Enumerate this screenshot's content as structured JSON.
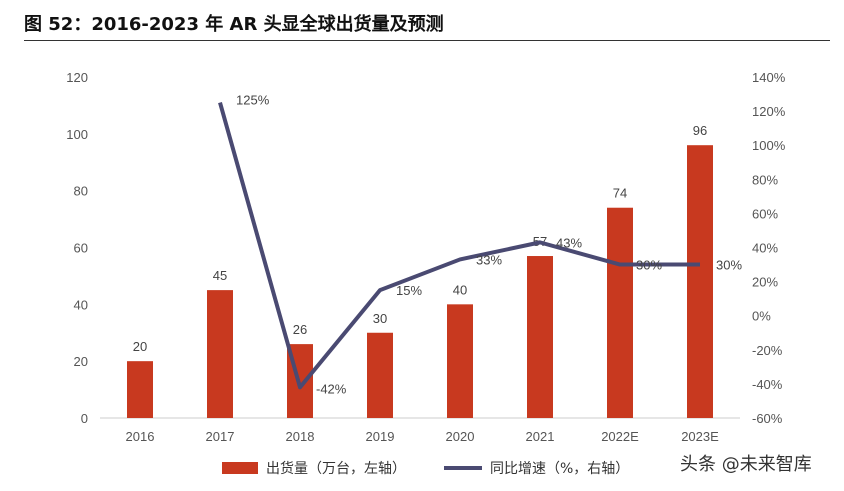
{
  "title": "图 52：2016-2023 年 AR 头显全球出货量及预测",
  "watermark": "头条 @未来智库",
  "colors": {
    "bar": "#c8391f",
    "line": "#4a4a72",
    "axis": "#cccccc"
  },
  "chart_data": {
    "type": "bar",
    "categories": [
      "2016",
      "2017",
      "2018",
      "2019",
      "2020",
      "2021",
      "2022E",
      "2023E"
    ],
    "series": [
      {
        "name": "出货量（万台，左轴）",
        "type": "bar",
        "axis": "left",
        "values": [
          20,
          45,
          26,
          30,
          40,
          57,
          74,
          96
        ],
        "labels": [
          "20",
          "45",
          "26",
          "30",
          "40",
          "57",
          "74",
          "96"
        ]
      },
      {
        "name": "同比增速（%，右轴）",
        "type": "line",
        "axis": "right",
        "values": [
          null,
          125,
          -42,
          15,
          33,
          43,
          30,
          30
        ],
        "labels": [
          "",
          "125%",
          "-42%",
          "15%",
          "33%",
          "43%",
          "30%",
          "30%"
        ]
      }
    ],
    "y_left": {
      "min": 0,
      "max": 120,
      "ticks": [
        "0",
        "20",
        "40",
        "60",
        "80",
        "100",
        "120"
      ]
    },
    "y_right": {
      "min": -60,
      "max": 140,
      "ticks": [
        "-60%",
        "-40%",
        "-20%",
        "0%",
        "20%",
        "40%",
        "60%",
        "80%",
        "100%",
        "120%",
        "140%"
      ]
    },
    "legend_position": "bottom",
    "grid": false
  }
}
